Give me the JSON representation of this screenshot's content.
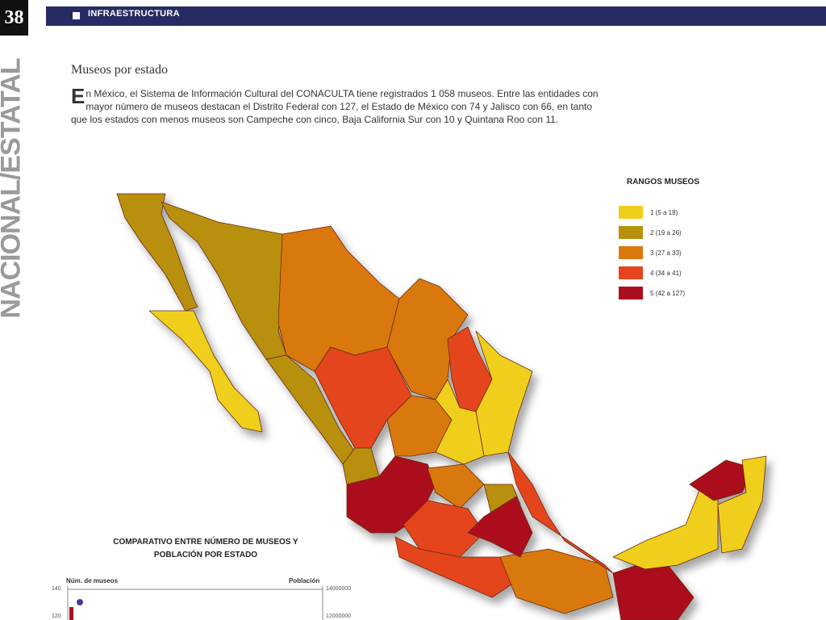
{
  "page_number": "38",
  "header": {
    "section": "INFRAESTRUCTURA",
    "side_label": "NACIONAL/ESTATAL"
  },
  "article": {
    "title": "Museos por estado",
    "body": "En México, el Sistema de Información Cultural del CONACULTA tiene registrados 1 058 museos. Entre las entidades con mayor número de museos destacan el Distrito Federal con 127, el Estado de México con 74 y Jalisco con 66, en tanto que los estados con menos museos son Campeche con cinco, Baja California Sur con 10 y Quintana Roo con 11."
  },
  "legend": {
    "title": "RANGOS MUSEOS",
    "items": [
      {
        "label": "1 (5 a 18)",
        "color": "#f0cf1c"
      },
      {
        "label": "2 (19 a 26)",
        "color": "#b8900c"
      },
      {
        "label": "3 (27 a 33)",
        "color": "#d9780c"
      },
      {
        "label": "4 (34 a 41)",
        "color": "#e5441f"
      },
      {
        "label": "5 (42 a 127)",
        "color": "#ab0f1f"
      }
    ]
  },
  "comparison": {
    "title": "COMPARATIVO ENTRE NÚMERO DE MUSEOS Y POBLACIÓN POR ESTADO",
    "left_axis": "Núm. de museos",
    "right_axis": "Población",
    "left_ticks": [
      "140",
      "120"
    ],
    "right_ticks": [
      "14000000",
      "12000000"
    ]
  }
}
